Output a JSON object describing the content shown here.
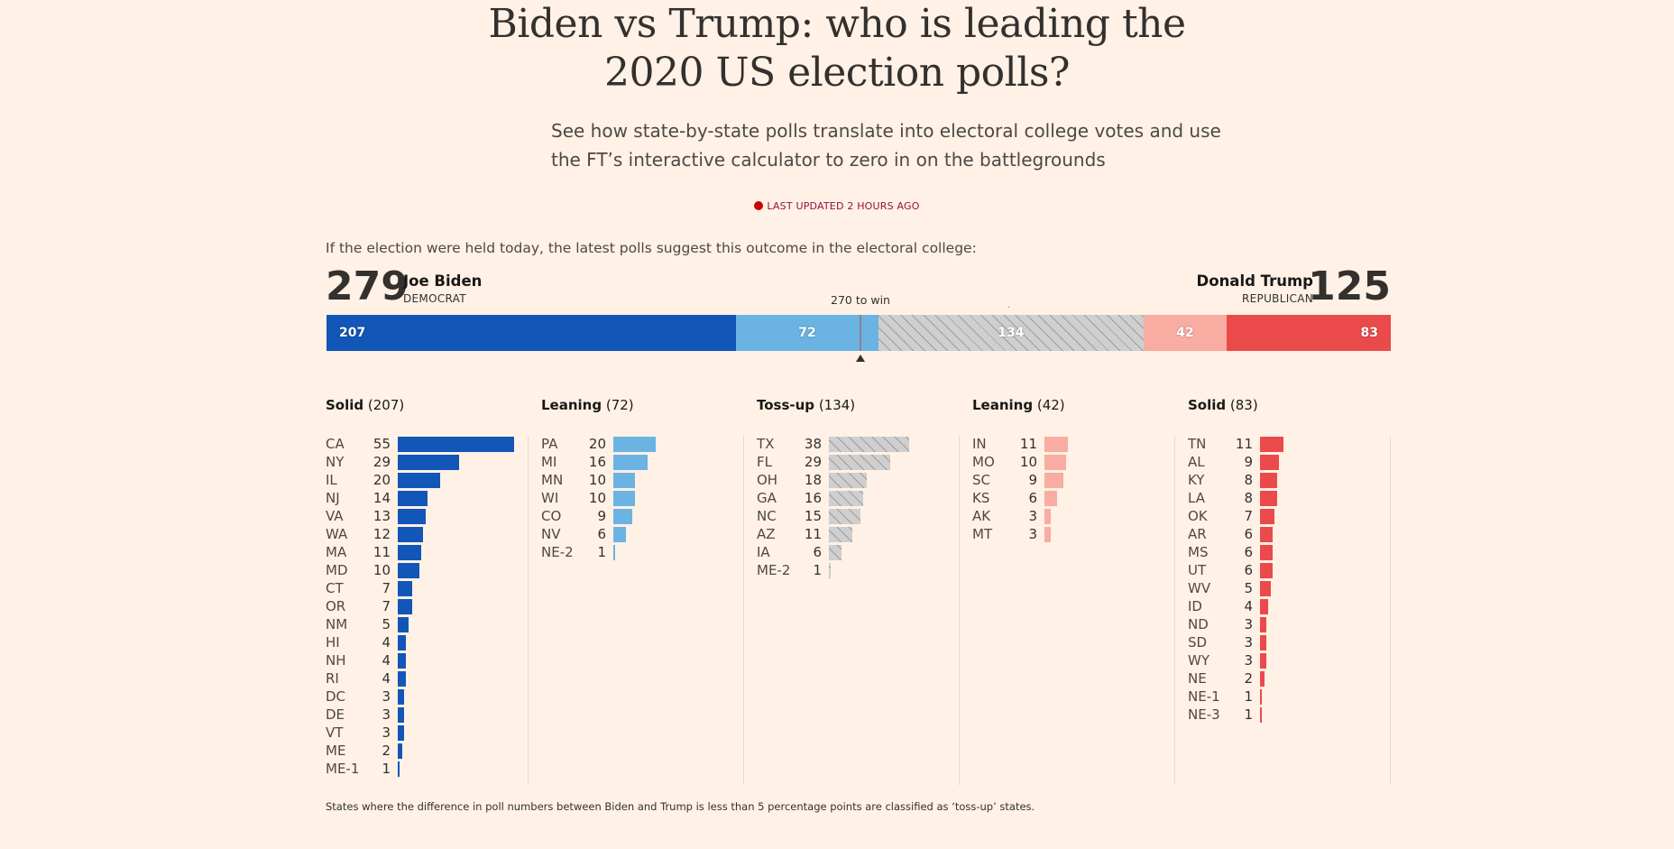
{
  "headline": [
    "Biden vs Trump: who is leading the",
    "2020 US election polls?"
  ],
  "standfirst": [
    "See how state-by-state polls translate into electoral college votes and use",
    "the FT’s interactive calculator to zero in on the battlegrounds"
  ],
  "last_updated": "LAST UPDATED 2 HOURS AGO",
  "intro": "If the election were held today, the latest polls suggest this outcome in the electoral college:",
  "biden": {
    "total": "279",
    "name": "Joe Biden",
    "party": "DEMOCRAT"
  },
  "trump": {
    "total": "125",
    "name": "Donald Trump",
    "party": "REPUBLICAN"
  },
  "to_win": "270 to win",
  "footnote": "States where the difference in poll numbers between Biden and Trump is less than 5 percentage points are classified as ‘toss-up’ states.",
  "colors": {
    "solid_dem": "#1256b8",
    "lean_dem": "#6bb3e3",
    "tossup": "#cfcfcf",
    "lean_rep": "#f9aca1",
    "solid_rep": "#eb4a4a",
    "background": "#fff1e5"
  },
  "chart_data": {
    "type": "bar",
    "total_electoral_votes": 538,
    "win_threshold": 270,
    "summary": [
      {
        "name": "Solid",
        "side": "Democrat",
        "value": 207
      },
      {
        "name": "Leaning",
        "side": "Democrat",
        "value": 72
      },
      {
        "name": "Toss-up",
        "side": "Toss-up",
        "value": 134
      },
      {
        "name": "Leaning",
        "side": "Republican",
        "value": 42
      },
      {
        "name": "Solid",
        "side": "Republican",
        "value": 83
      }
    ],
    "groups": [
      {
        "title": "Solid",
        "total": 207,
        "categories": [
          "CA",
          "NY",
          "IL",
          "NJ",
          "VA",
          "WA",
          "MA",
          "MD",
          "CT",
          "OR",
          "NM",
          "HI",
          "NH",
          "RI",
          "DC",
          "DE",
          "VT",
          "ME",
          "ME-1"
        ],
        "values": [
          55,
          29,
          20,
          14,
          13,
          12,
          11,
          10,
          7,
          7,
          5,
          4,
          4,
          4,
          3,
          3,
          3,
          2,
          1
        ]
      },
      {
        "title": "Leaning",
        "total": 72,
        "categories": [
          "PA",
          "MI",
          "MN",
          "WI",
          "CO",
          "NV",
          "NE-2"
        ],
        "values": [
          20,
          16,
          10,
          10,
          9,
          6,
          1
        ]
      },
      {
        "title": "Toss-up",
        "total": 134,
        "categories": [
          "TX",
          "FL",
          "OH",
          "GA",
          "NC",
          "AZ",
          "IA",
          "ME-2"
        ],
        "values": [
          38,
          29,
          18,
          16,
          15,
          11,
          6,
          1
        ]
      },
      {
        "title": "Leaning",
        "total": 42,
        "categories": [
          "IN",
          "MO",
          "SC",
          "KS",
          "AK",
          "MT"
        ],
        "values": [
          11,
          10,
          9,
          6,
          3,
          3
        ]
      },
      {
        "title": "Solid",
        "total": 83,
        "categories": [
          "TN",
          "AL",
          "KY",
          "LA",
          "OK",
          "AR",
          "MS",
          "UT",
          "WV",
          "ID",
          "ND",
          "SD",
          "WY",
          "NE",
          "NE-1",
          "NE-3"
        ],
        "values": [
          11,
          9,
          8,
          8,
          7,
          6,
          6,
          6,
          5,
          4,
          3,
          3,
          3,
          2,
          1,
          1
        ]
      }
    ]
  }
}
